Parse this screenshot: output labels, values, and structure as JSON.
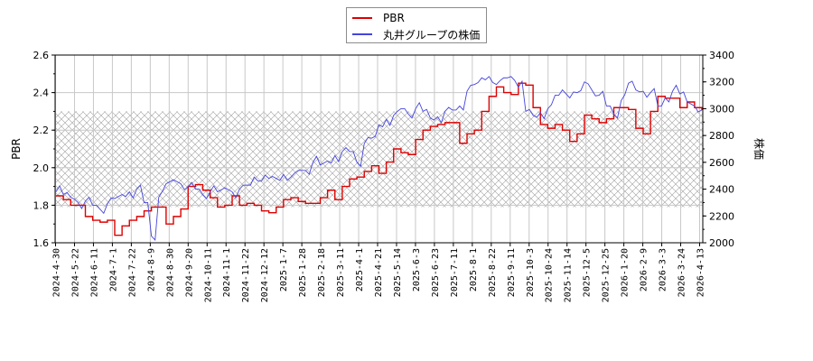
{
  "legend": {
    "items": [
      {
        "label": "PBR",
        "color": "#dd0000"
      },
      {
        "label": "丸井グループの株価",
        "color": "#4444dd"
      }
    ]
  },
  "chart_data": {
    "type": "line",
    "title": "",
    "xlabel": "",
    "ylabel": "PBR",
    "y2label": "株価",
    "ylim": [
      1.6,
      2.6
    ],
    "y2lim": [
      2000,
      3400
    ],
    "yticks": [
      "1.6",
      "1.8",
      "2.0",
      "2.2",
      "2.4",
      "2.6"
    ],
    "y2ticks": [
      "2000",
      "2200",
      "2400",
      "2600",
      "2800",
      "3000",
      "3200",
      "3400"
    ],
    "grid": true,
    "legend_position": "top-center",
    "shaded_band": {
      "axis": "left",
      "from": 1.79,
      "to": 2.3,
      "pattern": "crosshatch"
    },
    "x_ticks": [
      "2024-4-30",
      "2024-5-22",
      "2024-6-11",
      "2024-7-1",
      "2024-7-22",
      "2024-8-9",
      "2024-8-30",
      "2024-9-20",
      "2024-10-11",
      "2024-11-1",
      "2024-11-22",
      "2024-12-12",
      "2025-1-7",
      "2025-1-28",
      "2025-2-18",
      "2025-3-11",
      "2025-4-1",
      "2025-4-21",
      "2025-5-14",
      "2025-6-3",
      "2025-6-23",
      "2025-7-11",
      "2025-8-1",
      "2025-8-22",
      "2025-9-11",
      "2025-10-3",
      "2025-10-24",
      "2025-11-14",
      "2025-12-5",
      "2025-12-25",
      "2026-1-20",
      "2026-2-9",
      "2026-3-3",
      "2026-3-24",
      "2026-4-13"
    ],
    "series": [
      {
        "name": "PBR",
        "axis": "left",
        "color": "#dd0000",
        "values": [
          1.85,
          1.83,
          1.8,
          1.8,
          1.74,
          1.72,
          1.71,
          1.72,
          1.64,
          1.69,
          1.72,
          1.74,
          1.77,
          1.79,
          1.79,
          1.7,
          1.74,
          1.78,
          1.9,
          1.91,
          1.88,
          1.84,
          1.79,
          1.8,
          1.85,
          1.8,
          1.81,
          1.8,
          1.77,
          1.76,
          1.79,
          1.83,
          1.84,
          1.82,
          1.81,
          1.81,
          1.84,
          1.88,
          1.83,
          1.9,
          1.94,
          1.95,
          1.98,
          2.01,
          1.97,
          2.03,
          2.1,
          2.08,
          2.07,
          2.15,
          2.2,
          2.22,
          2.23,
          2.24,
          2.24,
          2.13,
          2.18,
          2.2,
          2.3,
          2.38,
          2.43,
          2.4,
          2.39,
          2.45,
          2.44,
          2.32,
          2.23,
          2.21,
          2.23,
          2.2,
          2.14,
          2.18,
          2.28,
          2.26,
          2.24,
          2.26,
          2.32,
          2.32,
          2.31,
          2.21,
          2.18,
          2.3,
          2.38,
          2.37,
          2.37,
          2.32,
          2.35,
          2.32,
          2.31
        ]
      },
      {
        "name": "丸井グループの株価",
        "axis": "right",
        "color": "#4444dd",
        "values": [
          2380,
          2360,
          2340,
          2300,
          2310,
          2280,
          2250,
          2290,
          2330,
          2360,
          2380,
          2400,
          2300,
          2050,
          2340,
          2440,
          2470,
          2440,
          2420,
          2400,
          2360,
          2380,
          2380,
          2410,
          2380,
          2400,
          2430,
          2490,
          2460,
          2480,
          2480,
          2510,
          2490,
          2540,
          2540,
          2600,
          2580,
          2610,
          2650,
          2680,
          2680,
          2600,
          2740,
          2780,
          2880,
          2920,
          2950,
          3000,
          2960,
          3000,
          2980,
          2930,
          2940,
          2980,
          2990,
          3020,
          3130,
          3180,
          3230,
          3240,
          3180,
          3230,
          3240,
          3160,
          2980,
          2950,
          2970,
          3000,
          3100,
          3140,
          3080,
          3120,
          3200,
          3140,
          3100,
          3020,
          2960,
          3060,
          3190,
          3140,
          3130,
          3120,
          3020,
          3080,
          3130,
          3110,
          3050,
          3020,
          2990
        ]
      }
    ]
  }
}
